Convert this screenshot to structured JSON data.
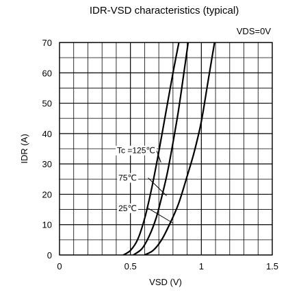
{
  "chart_data": {
    "type": "line",
    "title": "IDR-VSD characteristics (typical)",
    "annotation_top_right": "VDS=0V",
    "xlabel": "VSD (V)",
    "ylabel": "IDR (A)",
    "xlim": [
      0,
      1.5
    ],
    "ylim": [
      0,
      70
    ],
    "x_ticks": [
      0,
      0.5,
      1,
      1.5
    ],
    "x_tick_labels": [
      "0",
      "0.5",
      "1",
      "1.5"
    ],
    "y_ticks": [
      0,
      10,
      20,
      30,
      40,
      50,
      60,
      70
    ],
    "y_tick_labels": [
      "0",
      "10",
      "20",
      "30",
      "40",
      "50",
      "60",
      "70"
    ],
    "minor_x_step": 0.1,
    "minor_y_step": 5,
    "grid": true,
    "series": [
      {
        "name": "Tc =125℃",
        "x": [
          0.45,
          0.5,
          0.55,
          0.6,
          0.65,
          0.7,
          0.75,
          0.8,
          0.85
        ],
        "y": [
          0,
          1.5,
          5,
          12,
          22,
          34,
          47,
          60,
          72
        ]
      },
      {
        "name": "75℃",
        "x": [
          0.52,
          0.58,
          0.63,
          0.68,
          0.72,
          0.76,
          0.8,
          0.84,
          0.88,
          0.91
        ],
        "y": [
          0,
          2,
          6,
          12,
          19,
          27,
          37,
          48,
          61,
          71
        ]
      },
      {
        "name": "25℃",
        "x": [
          0.6,
          0.66,
          0.72,
          0.78,
          0.84,
          0.9,
          0.95,
          1.0,
          1.05,
          1.1
        ],
        "y": [
          0,
          1.5,
          5,
          10.5,
          17,
          26,
          34,
          44,
          58,
          72
        ]
      }
    ]
  }
}
